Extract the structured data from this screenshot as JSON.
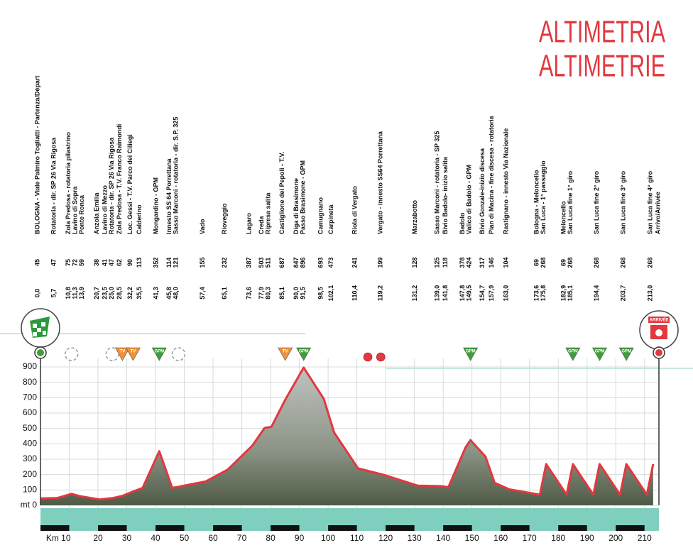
{
  "chart_data": {
    "type": "area",
    "title": "ALTIMETRIA",
    "subtitle": "ALTIMETRIE",
    "xlim": [
      0,
      215
    ],
    "ylim": [
      0,
      900
    ],
    "yticks": [
      {
        "value": 0,
        "label": "mt 0"
      },
      100,
      200,
      300,
      400,
      500,
      600,
      700,
      800,
      900
    ],
    "xticks": [
      {
        "value": 10,
        "label": "Km 10"
      },
      20,
      30,
      40,
      50,
      60,
      70,
      80,
      90,
      100,
      110,
      120,
      130,
      140,
      150,
      160,
      170,
      180,
      190,
      200,
      210
    ],
    "grid": true,
    "x": [
      0,
      5.7,
      10.8,
      13.9,
      20.7,
      25,
      28.5,
      32.2,
      35.5,
      41.3,
      45.8,
      48,
      57.4,
      65.1,
      73.6,
      77.9,
      80.3,
      85.1,
      91.5,
      98.5,
      102.1,
      110.4,
      119.2,
      131.2,
      139,
      141.8,
      147.8,
      149.5,
      154.7,
      157.9,
      163,
      173.6,
      175.8,
      182.9,
      185.1,
      192.2,
      194.4,
      201.5,
      203.7,
      210.8,
      213
    ],
    "series": [
      {
        "color": "#e2383f",
        "values": [
          45,
          47,
          75,
          59,
          38,
          47,
          62,
          90,
          113,
          352,
          114,
          121,
          155,
          232,
          387,
          503,
          511,
          687,
          896,
          693,
          473,
          241,
          199,
          128,
          125,
          118,
          378,
          424,
          317,
          146,
          104,
          69,
          268,
          69,
          268,
          69,
          268,
          69,
          268,
          69,
          268
        ]
      }
    ],
    "locations": [
      {
        "lines": [
          "BOLOGNA - Viale Palmiro Togliatti - Partenza/Départ"
        ],
        "alt": 45,
        "km": {
          "value": 0,
          "label": "0,0"
        }
      },
      {
        "lines": [
          "Rotatoria - dir. SP 26 Via Rigosa"
        ],
        "alt": 47,
        "km": {
          "value": 5.7,
          "label": "5,7"
        }
      },
      {
        "lines": [
          "Zola Predosa - rotatoria pilastrino"
        ],
        "alt": 75,
        "km": {
          "value": 10.8,
          "label": "10,8"
        }
      },
      {
        "lines": [
          "Lavino di Sopra"
        ],
        "alt": 72,
        "km": {
          "value": 11.3,
          "label": "11,3"
        }
      },
      {
        "lines": [
          "Ponte Ronca"
        ],
        "alt": 59,
        "km": {
          "value": 13.9,
          "label": "13,9"
        }
      },
      {
        "lines": [
          "Anzola Emilia"
        ],
        "alt": 38,
        "km": {
          "value": 20.7,
          "label": "20,7"
        }
      },
      {
        "lines": [
          "Lavino di Mezzo"
        ],
        "alt": 41,
        "km": {
          "value": 23.5,
          "label": "23,5"
        }
      },
      {
        "lines": [
          "Rotatoria - dir. SP 26 Via Rigosa"
        ],
        "alt": 47,
        "km": {
          "value": 25,
          "label": "25,0"
        }
      },
      {
        "lines": [
          "Zola Predosa - T.V. Franco Raimondi"
        ],
        "alt": 62,
        "km": {
          "value": 28.5,
          "label": "28,5"
        }
      },
      {
        "lines": [
          "Loc. Gessi - T.V. Parco dei Ciliegi"
        ],
        "alt": 90,
        "km": {
          "value": 32.2,
          "label": "32,2"
        }
      },
      {
        "lines": [
          "Calderino"
        ],
        "alt": 113,
        "km": {
          "value": 35.5,
          "label": "35,5"
        }
      },
      {
        "lines": [
          "Mongardino - GPM"
        ],
        "alt": 352,
        "km": {
          "value": 41.3,
          "label": "41,3"
        }
      },
      {
        "lines": [
          "Innesto SS 64 Porrettana"
        ],
        "alt": 114,
        "km": {
          "value": 45.8,
          "label": "45,8"
        }
      },
      {
        "lines": [
          "Sasso Marconi - rotatoria - dir. S.P. 325"
        ],
        "alt": 121,
        "km": {
          "value": 48,
          "label": "48,0"
        }
      },
      {
        "lines": [
          "Vado"
        ],
        "alt": 155,
        "km": {
          "value": 57.4,
          "label": "57,4"
        }
      },
      {
        "lines": [
          "Rioveggio"
        ],
        "alt": 232,
        "km": {
          "value": 65.1,
          "label": "65,1"
        }
      },
      {
        "lines": [
          "Lagaro"
        ],
        "alt": 387,
        "km": {
          "value": 73.6,
          "label": "73,6"
        }
      },
      {
        "lines": [
          "Creda"
        ],
        "alt": 503,
        "km": {
          "value": 77.9,
          "label": "77,9"
        }
      },
      {
        "lines": [
          "Ripresa salita"
        ],
        "alt": 511,
        "km": {
          "value": 80.3,
          "label": "80,3"
        }
      },
      {
        "lines": [
          "Castiglione dei Pepoli - T.V."
        ],
        "alt": 687,
        "km": {
          "value": 85.1,
          "label": "85,1"
        }
      },
      {
        "lines": [
          "Diga di Brasimone"
        ],
        "alt": 847,
        "km": {
          "value": 90,
          "label": "90,0"
        }
      },
      {
        "lines": [
          "Passo Brasimone - GPM"
        ],
        "alt": 896,
        "km": {
          "value": 91.5,
          "label": "91,5"
        }
      },
      {
        "lines": [
          "Camugnano"
        ],
        "alt": 693,
        "km": {
          "value": 98.5,
          "label": "98,5"
        }
      },
      {
        "lines": [
          "Carpineta"
        ],
        "alt": 473,
        "km": {
          "value": 102.1,
          "label": "102,1"
        }
      },
      {
        "lines": [
          "Riola di Vergato"
        ],
        "alt": 241,
        "km": {
          "value": 110.4,
          "label": "110,4"
        }
      },
      {
        "lines": [
          "Vergato - innesto SS64 Porrettana"
        ],
        "alt": 199,
        "km": {
          "value": 119.2,
          "label": "119,2"
        }
      },
      {
        "lines": [
          "Marzabotto"
        ],
        "alt": 128,
        "km": {
          "value": 131.2,
          "label": "131,2"
        }
      },
      {
        "lines": [
          "Sasso Marconi - rotatoria - SP 325"
        ],
        "alt": 125,
        "km": {
          "value": 139,
          "label": "139,0"
        }
      },
      {
        "lines": [
          "Bivio Badolo- inizio salita"
        ],
        "alt": 118,
        "km": {
          "value": 141.8,
          "label": "141,8"
        }
      },
      {
        "lines": [
          "Badolo"
        ],
        "alt": 378,
        "km": {
          "value": 147.8,
          "label": "147,8"
        }
      },
      {
        "lines": [
          "Valico di Badolo - GPM"
        ],
        "alt": 424,
        "km": {
          "value": 149.5,
          "label": "149,5"
        }
      },
      {
        "lines": [
          "Bivio Gonzale-inizio discesa"
        ],
        "alt": 317,
        "km": {
          "value": 154.7,
          "label": "154,7"
        }
      },
      {
        "lines": [
          "Pian di Macina - fine discesa - rotatoria"
        ],
        "alt": 146,
        "km": {
          "value": 157.9,
          "label": "157,9"
        }
      },
      {
        "lines": [
          "Rastignano - innesto Via Nazionale"
        ],
        "alt": 104,
        "km": {
          "value": 163,
          "label": "163,0"
        }
      },
      {
        "lines": [
          "Bologna - Meloncello"
        ],
        "alt": 69,
        "km": {
          "value": 173.6,
          "label": "173,6"
        }
      },
      {
        "lines": [
          "San Luca - 1° passaggio"
        ],
        "alt": 268,
        "km": {
          "value": 175.8,
          "label": "175,8"
        }
      },
      {
        "lines": [
          "Meloncello"
        ],
        "alt": 69,
        "km": {
          "value": 182.9,
          "label": "182,9"
        }
      },
      {
        "lines": [
          "San Luca fine 1° giro"
        ],
        "alt": 268,
        "km": {
          "value": 185.1,
          "label": "185,1"
        }
      },
      {
        "lines": [
          "San Luca fine 2° giro"
        ],
        "alt": 268,
        "km": {
          "value": 194.4,
          "label": "194,4"
        }
      },
      {
        "lines": [
          "San Luca fine 3° giro"
        ],
        "alt": 268,
        "km": {
          "value": 203.7,
          "label": "203,7"
        }
      },
      {
        "lines": [
          "San Luca fine 4° giro",
          "Arrivo/Arrivée"
        ],
        "alt": 268,
        "km": {
          "value": 213,
          "label": "213,0"
        }
      }
    ],
    "markers": [
      {
        "km": 10.8,
        "kind": "roundabout"
      },
      {
        "km": 25,
        "kind": "roundabout"
      },
      {
        "km": 28.5,
        "kind": "triangle",
        "label": "TV",
        "color": "#f0923a"
      },
      {
        "km": 32.2,
        "kind": "triangle",
        "label": "TV",
        "color": "#f0923a"
      },
      {
        "km": 41.3,
        "kind": "triangle",
        "label": "GPM",
        "color": "#3f9e3c"
      },
      {
        "km": 48,
        "kind": "roundabout"
      },
      {
        "km": 85.1,
        "kind": "triangle",
        "label": "TV",
        "color": "#f0923a"
      },
      {
        "km": 91.5,
        "kind": "triangle",
        "label": "GPM",
        "color": "#3f9e3c"
      },
      {
        "km": 113.8,
        "kind": "dot",
        "color": "#e2383f"
      },
      {
        "km": 118.3,
        "kind": "dot",
        "color": "#e2383f"
      },
      {
        "km": 149.5,
        "kind": "triangle",
        "label": "GPM",
        "color": "#3f9e3c"
      },
      {
        "km": 185.1,
        "kind": "triangle",
        "label": "GPM",
        "color": "#3f9e3c"
      },
      {
        "km": 194.4,
        "kind": "triangle",
        "label": "GPM",
        "color": "#3f9e3c"
      },
      {
        "km": 203.7,
        "kind": "triangle",
        "label": "GPM",
        "color": "#3f9e3c"
      }
    ],
    "finish_sign": "ARRIVÉE"
  }
}
